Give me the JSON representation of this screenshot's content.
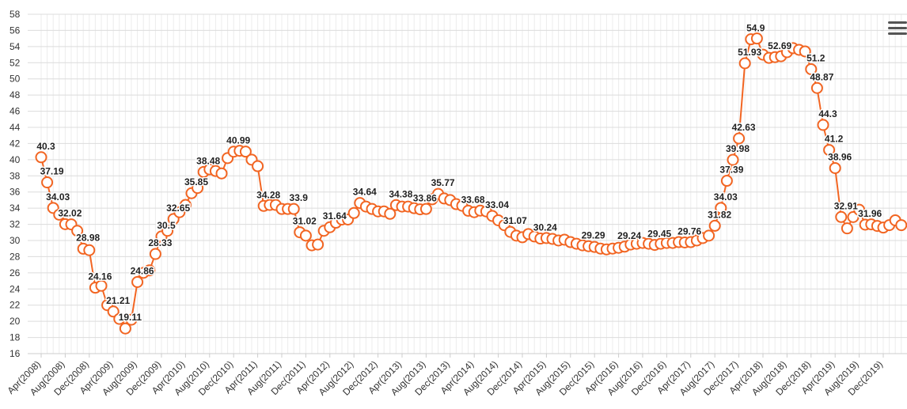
{
  "chart_data": {
    "type": "line",
    "categories": [
      "Apr(2008)",
      null,
      null,
      null,
      "Aug(2008)",
      null,
      null,
      null,
      "Dec(2008)",
      null,
      null,
      null,
      "Apr(2009)",
      null,
      null,
      null,
      "Aug(2009)",
      null,
      null,
      null,
      "Dec(2009)",
      null,
      null,
      null,
      "Apr(2010)",
      null,
      null,
      null,
      "Aug(2010)",
      null,
      null,
      null,
      "Dec(2010)",
      null,
      null,
      null,
      "Apr(2011)",
      null,
      null,
      null,
      "Aug(2011)",
      null,
      null,
      null,
      "Dec(2011)",
      null,
      null,
      null,
      "Apr(2012)",
      null,
      null,
      null,
      "Aug(2012)",
      null,
      null,
      null,
      "Dec(2012)",
      null,
      null,
      null,
      "Apr(2013)",
      null,
      null,
      null,
      "Aug(2013)",
      null,
      null,
      null,
      "Dec(2013)",
      null,
      null,
      null,
      "Apr(2014)",
      null,
      null,
      null,
      "Aug(2014)",
      null,
      null,
      null,
      "Dec(2014)",
      null,
      null,
      null,
      "Apr(2015)",
      null,
      null,
      null,
      "Aug(2015)",
      null,
      null,
      null,
      "Dec(2015)",
      null,
      null,
      null,
      "Apr(2016)",
      null,
      null,
      null,
      "Aug(2016)",
      null,
      null,
      null,
      "Dec(2016)",
      null,
      null,
      null,
      "Apr(2017)",
      null,
      null,
      null,
      "Aug(2017)",
      null,
      null,
      null,
      "Dec(2017)",
      null,
      null,
      null,
      "Apr(2018)",
      null,
      null,
      null,
      "Aug(2018)",
      null,
      null,
      null,
      "Dec(2018)",
      null,
      null,
      null,
      "Apr(2019)",
      null,
      null,
      null,
      "Aug(2019)",
      null,
      null,
      null,
      "Dec(2019)",
      null,
      null,
      null
    ],
    "series": [
      {
        "color": "#f26522",
        "values": [
          40.3,
          37.19,
          34.03,
          33.2,
          32.02,
          32.0,
          31.2,
          28.98,
          28.8,
          24.16,
          24.4,
          22.0,
          21.21,
          20.3,
          19.11,
          20.2,
          24.86,
          26.0,
          26.3,
          28.33,
          30.5,
          31.2,
          32.65,
          33.5,
          34.4,
          35.85,
          36.5,
          38.48,
          38.8,
          38.6,
          38.3,
          40.2,
          40.99,
          41.1,
          41.0,
          40.0,
          39.2,
          34.28,
          34.4,
          34.4,
          33.9,
          33.9,
          33.9,
          31.02,
          30.6,
          29.4,
          29.5,
          31.2,
          31.64,
          32.2,
          32.6,
          32.6,
          33.4,
          34.64,
          34.2,
          33.9,
          33.6,
          33.6,
          33.3,
          34.38,
          34.2,
          34.2,
          34.0,
          33.86,
          33.9,
          35.1,
          35.77,
          35.2,
          35.0,
          34.5,
          34.3,
          33.68,
          33.5,
          33.7,
          33.6,
          33.04,
          32.5,
          31.9,
          31.07,
          30.6,
          30.4,
          30.8,
          30.5,
          30.24,
          30.3,
          30.2,
          30.0,
          30.1,
          29.8,
          29.6,
          29.4,
          29.29,
          29.2,
          29.0,
          28.9,
          29.0,
          29.1,
          29.24,
          29.5,
          29.6,
          29.7,
          29.6,
          29.45,
          29.6,
          29.7,
          29.7,
          29.8,
          29.76,
          29.8,
          30.0,
          30.3,
          30.6,
          31.82,
          34.03,
          37.39,
          39.98,
          42.63,
          51.93,
          54.9,
          55.0,
          53.0,
          52.6,
          52.69,
          52.8,
          53.3,
          53.8,
          53.6,
          53.4,
          51.2,
          48.87,
          44.3,
          41.2,
          38.96,
          32.91,
          31.5,
          32.9,
          33.8,
          31.96,
          32.0,
          31.8,
          31.6,
          31.9,
          32.5,
          31.9
        ],
        "value_labels": [
          "40.3",
          "37.19",
          "34.03",
          null,
          "32.02",
          null,
          null,
          "28.98",
          null,
          "24.16",
          null,
          null,
          "21.21",
          null,
          "19.11",
          null,
          "24.86",
          null,
          null,
          "28.33",
          "30.5",
          null,
          "32.65",
          null,
          null,
          "35.85",
          null,
          "38.48",
          null,
          null,
          null,
          null,
          "40.99",
          null,
          null,
          null,
          null,
          "34.28",
          null,
          null,
          null,
          null,
          "33.9",
          "31.02",
          null,
          null,
          null,
          null,
          "31.64",
          null,
          null,
          null,
          null,
          "34.64",
          null,
          null,
          null,
          null,
          null,
          "34.38",
          null,
          null,
          null,
          "33.86",
          null,
          null,
          "35.77",
          null,
          null,
          null,
          null,
          "33.68",
          null,
          null,
          null,
          "33.04",
          null,
          null,
          "31.07",
          null,
          null,
          null,
          null,
          "30.24",
          null,
          null,
          null,
          null,
          null,
          null,
          null,
          "29.29",
          null,
          null,
          null,
          null,
          null,
          "29.24",
          null,
          null,
          null,
          null,
          "29.45",
          null,
          null,
          null,
          null,
          "29.76",
          null,
          null,
          null,
          null,
          "31.82",
          "34.03",
          "37.39",
          "39.98",
          "42.63",
          "51.93",
          "54.9",
          null,
          null,
          null,
          "52.69",
          null,
          null,
          null,
          null,
          null,
          "51.2",
          "48.87",
          "44.3",
          "41.2",
          "38.96",
          "32.91",
          null,
          null,
          null,
          "31.96",
          null,
          null,
          null,
          null,
          null,
          null
        ]
      }
    ],
    "ylim": [
      16,
      58
    ],
    "yticks": [
      16,
      18,
      20,
      22,
      24,
      26,
      28,
      30,
      32,
      34,
      36,
      38,
      40,
      42,
      44,
      46,
      48,
      50,
      52,
      54,
      56,
      58
    ],
    "grid": true
  }
}
